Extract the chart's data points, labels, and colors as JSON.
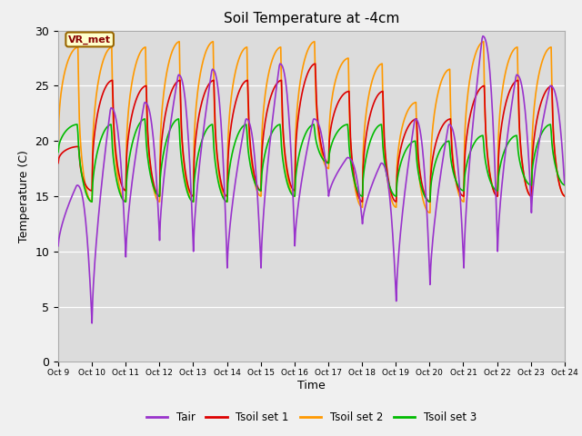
{
  "title": "Soil Temperature at -4cm",
  "xlabel": "Time",
  "ylabel": "Temperature (C)",
  "ylim": [
    0,
    30
  ],
  "bg_color": "#dcdcdc",
  "annotation": "VR_met",
  "line_colors": {
    "Tair": "#9933cc",
    "Tsoil set 1": "#dd0000",
    "Tsoil set 2": "#ff9900",
    "Tsoil set 3": "#00bb00"
  },
  "x_tick_labels": [
    "Oct 9",
    "Oct 10",
    "Oct 11",
    "Oct 12",
    "Oct 13",
    "Oct 14",
    "Oct 15",
    "Oct 16",
    "Oct 17",
    "Oct 18",
    "Oct 19",
    "Oct 20",
    "Oct 21",
    "Oct 22",
    "Oct 23",
    "Oct 24"
  ],
  "days": 15,
  "pts_per_day": 48,
  "Tair_peaks": [
    16.0,
    23.0,
    23.5,
    26.0,
    26.5,
    22.0,
    27.0,
    22.0,
    18.5,
    18.0,
    22.0,
    21.5,
    29.5,
    26.0,
    25.0,
    15.5
  ],
  "Tair_troughs": [
    10.5,
    3.5,
    9.5,
    11.0,
    10.0,
    8.5,
    8.5,
    10.5,
    15.0,
    12.5,
    5.5,
    7.0,
    8.5,
    10.0,
    13.5,
    15.0
  ],
  "Ts1_peaks": [
    19.5,
    25.5,
    25.0,
    25.5,
    25.5,
    25.5,
    25.5,
    27.0,
    24.5,
    24.5,
    22.0,
    22.0,
    25.0,
    25.5,
    25.0,
    15.5
  ],
  "Ts1_troughs": [
    18.0,
    15.5,
    15.5,
    15.0,
    15.0,
    15.0,
    15.5,
    15.5,
    18.0,
    14.5,
    14.5,
    14.5,
    15.0,
    15.0,
    15.0,
    15.0
  ],
  "Ts2_peaks": [
    28.5,
    28.5,
    28.5,
    29.0,
    29.0,
    28.5,
    28.5,
    29.0,
    27.5,
    27.0,
    23.5,
    26.5,
    29.0,
    28.5,
    28.5,
    16.5
  ],
  "Ts2_troughs": [
    18.0,
    14.5,
    14.5,
    14.5,
    14.5,
    14.5,
    15.0,
    15.0,
    17.5,
    14.0,
    14.0,
    13.5,
    14.5,
    15.0,
    15.0,
    15.0
  ],
  "Ts3_peaks": [
    21.5,
    21.5,
    22.0,
    22.0,
    21.5,
    21.5,
    21.5,
    21.5,
    21.5,
    21.5,
    20.0,
    20.0,
    20.5,
    20.5,
    21.5,
    17.0
  ],
  "Ts3_troughs": [
    19.0,
    14.5,
    14.5,
    15.0,
    14.5,
    14.5,
    15.5,
    15.0,
    18.0,
    15.0,
    15.0,
    14.5,
    15.5,
    15.5,
    16.0,
    16.0
  ]
}
